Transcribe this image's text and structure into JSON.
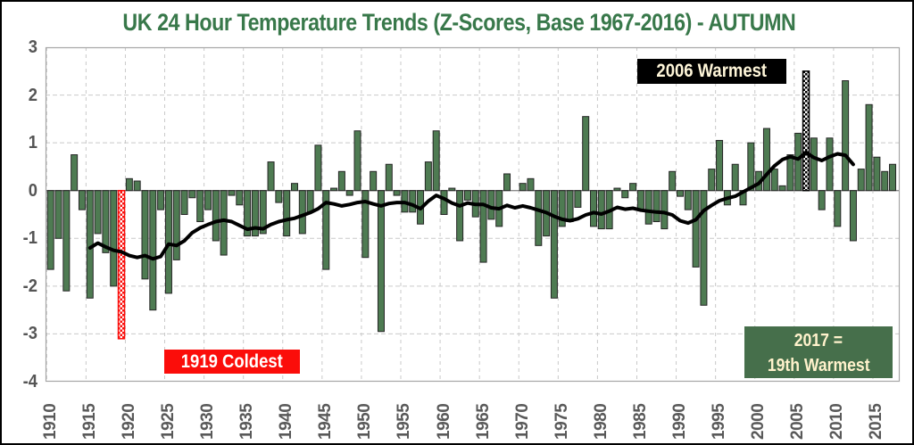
{
  "title": {
    "text": "UK 24 Hour Temperature Trends (Z-Scores, Base 1967-2016) - AUTUMN"
  },
  "colors": {
    "title_green": "#38784A",
    "bar_green": "#4E7B52",
    "bar_outline": "#262626",
    "coldest_red": "#FB0D0A",
    "warmest_black": "#000000",
    "latest_box_green": "#466F4B",
    "latest_text_cream": "#FFF2CC",
    "avg_line_black": "#000000",
    "gridline_gray": "#C9C9C9",
    "plot_border_gray": "#A6A6A6",
    "zero_line_gray": "#8C8C8C",
    "axis_label_gray": "#595959"
  },
  "chart_data": {
    "type": "bar",
    "title": "UK 24 Hour Temperature Trends (Z-Scores, Base 1967-2016) - AUTUMN",
    "xlabel": "",
    "ylabel": "",
    "ylim": [
      -4,
      3
    ],
    "grid": true,
    "legend": false,
    "start_year": 1910,
    "end_year": 2017,
    "values": [
      -1.65,
      -1.0,
      -2.1,
      0.75,
      -0.4,
      -2.25,
      -0.9,
      -1.3,
      -2.0,
      -3.1,
      0.25,
      0.2,
      -1.85,
      -2.5,
      -0.4,
      -2.15,
      -1.45,
      -0.5,
      -0.15,
      -0.65,
      -0.4,
      -1.05,
      -1.35,
      -0.1,
      -0.3,
      -0.95,
      -0.95,
      -0.9,
      0.6,
      -0.25,
      -0.95,
      0.15,
      -0.9,
      -0.45,
      0.95,
      -1.65,
      0.05,
      0.4,
      -0.1,
      1.25,
      -1.4,
      0.4,
      -2.95,
      0.55,
      -0.1,
      -0.45,
      -0.45,
      -0.7,
      0.6,
      1.25,
      -0.5,
      0.05,
      -1.05,
      -0.2,
      -0.55,
      -1.5,
      -0.6,
      -0.75,
      0.35,
      0.0,
      0.15,
      0.25,
      -1.15,
      -0.95,
      -2.25,
      -0.75,
      -0.65,
      -0.35,
      1.55,
      -0.75,
      -0.8,
      -0.8,
      0.05,
      -0.15,
      0.15,
      -0.4,
      -0.7,
      -0.65,
      -0.8,
      0.4,
      -0.12,
      -0.4,
      -1.6,
      -2.4,
      0.45,
      1.05,
      -0.3,
      0.55,
      -0.3,
      1.0,
      0.4,
      1.3,
      0.45,
      0.1,
      0.75,
      1.2,
      2.5,
      1.1,
      -0.4,
      1.1,
      -0.75,
      2.3,
      -1.05,
      0.45,
      1.8,
      0.7,
      0.4,
      0.55
    ],
    "special_bars": {
      "coldest": {
        "year": 1919,
        "value": -3.1,
        "pattern": "red-white-checker"
      },
      "warmest": {
        "year": 2006,
        "value": 2.5,
        "pattern": "black-white-checker"
      }
    },
    "moving_average": {
      "description": "thick black centered moving-average line",
      "start_year": 1915,
      "end_year": 2012,
      "values": [
        -1.2,
        -1.1,
        -1.18,
        -1.25,
        -1.28,
        -1.36,
        -1.4,
        -1.36,
        -1.43,
        -1.38,
        -1.12,
        -1.15,
        -1.05,
        -0.88,
        -0.78,
        -0.71,
        -0.65,
        -0.62,
        -0.65,
        -0.73,
        -0.81,
        -0.78,
        -0.8,
        -0.71,
        -0.65,
        -0.61,
        -0.58,
        -0.52,
        -0.46,
        -0.38,
        -0.25,
        -0.28,
        -0.32,
        -0.29,
        -0.25,
        -0.23,
        -0.28,
        -0.32,
        -0.27,
        -0.25,
        -0.25,
        -0.3,
        -0.38,
        -0.22,
        -0.1,
        -0.17,
        -0.26,
        -0.32,
        -0.26,
        -0.29,
        -0.29,
        -0.36,
        -0.38,
        -0.31,
        -0.36,
        -0.32,
        -0.36,
        -0.41,
        -0.46,
        -0.54,
        -0.6,
        -0.63,
        -0.59,
        -0.51,
        -0.46,
        -0.49,
        -0.43,
        -0.35,
        -0.39,
        -0.37,
        -0.41,
        -0.43,
        -0.45,
        -0.46,
        -0.51,
        -0.63,
        -0.68,
        -0.61,
        -0.42,
        -0.31,
        -0.21,
        -0.16,
        -0.12,
        -0.03,
        0.06,
        0.15,
        0.34,
        0.52,
        0.65,
        0.71,
        0.66,
        0.8,
        0.69,
        0.63,
        0.71,
        0.77,
        0.74,
        0.55
      ]
    },
    "yticks": [
      "3",
      "2",
      "1",
      "0",
      "-1",
      "-2",
      "-3",
      "-4"
    ],
    "ytick_values": [
      3,
      2,
      1,
      0,
      -1,
      -2,
      -3,
      -4
    ],
    "xticks": [
      "1910",
      "1915",
      "1920",
      "1925",
      "1930",
      "1935",
      "1940",
      "1945",
      "1950",
      "1955",
      "1960",
      "1965",
      "1970",
      "1975",
      "1980",
      "1985",
      "1990",
      "1995",
      "2000",
      "2005",
      "2010",
      "2015"
    ],
    "annotations": {
      "warmest": {
        "text": "2006 Warmest"
      },
      "coldest": {
        "text": "1919 Coldest"
      },
      "latest": {
        "line1": "2017 =",
        "line2": "19th Warmest"
      }
    }
  }
}
